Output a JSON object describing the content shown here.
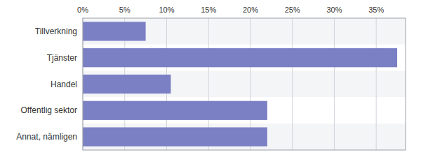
{
  "chart_data": {
    "type": "bar",
    "orientation": "horizontal",
    "categories": [
      "Tillverkning",
      "Tjänster",
      "Handel",
      "Offentlig sektor",
      "Annat, nämligen"
    ],
    "values": [
      7.5,
      37.5,
      10.5,
      22.0,
      22.0
    ],
    "color": "#7b7fc4",
    "xlim": [
      0,
      38.5
    ],
    "xticks": [
      {
        "value": 0,
        "label": "0%"
      },
      {
        "value": 5,
        "label": "5%"
      },
      {
        "value": 10,
        "label": "10%"
      },
      {
        "value": 15,
        "label": "15%"
      },
      {
        "value": 20,
        "label": "20%"
      },
      {
        "value": 25,
        "label": "25%"
      },
      {
        "value": 30,
        "label": "30%"
      },
      {
        "value": 35,
        "label": "35%"
      }
    ],
    "grid": true
  }
}
